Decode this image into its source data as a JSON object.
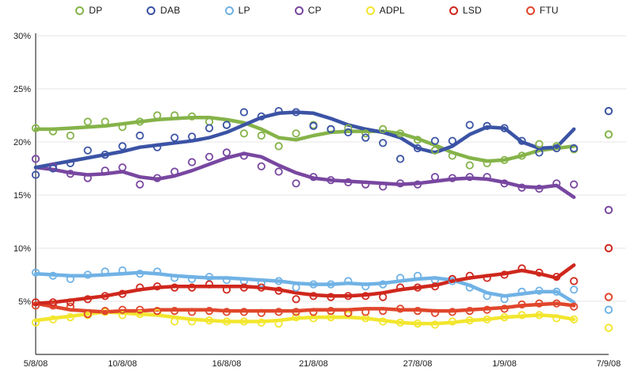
{
  "chart_data": {
    "type": "line",
    "description": "Daily opinion polling trend lines with scatter points for seven parties, ending with isolated election-result points on 7/9/08",
    "legend": {
      "position": "top",
      "items": [
        "DP",
        "DAB",
        "LP",
        "CP",
        "ADPL",
        "LSD",
        "FTU"
      ]
    },
    "x_axis": {
      "tick_labels": [
        "5/8/08",
        "10/8/08",
        "16/8/08",
        "21/8/08",
        "27/8/08",
        "1/9/08",
        "7/9/08"
      ],
      "tick_days": [
        0,
        5,
        11,
        16,
        22,
        27,
        33
      ],
      "total_days": 33
    },
    "y_axis": {
      "tick_labels": [
        "5%",
        "10%",
        "15%",
        "20%",
        "25%",
        "30%"
      ],
      "tick_values": [
        5,
        10,
        15,
        20,
        25,
        30
      ],
      "min": 0,
      "max": 30,
      "unit": "%",
      "grid": true
    },
    "style": {
      "grid_color": "#e4e4e4",
      "axis_color": "#3a3a3a",
      "label_color": "#1a1a1a",
      "background": "#ffffff"
    },
    "dates": [
      "5/8/08",
      "6/8/08",
      "7/8/08",
      "8/8/08",
      "9/8/08",
      "10/8/08",
      "11/8/08",
      "12/8/08",
      "13/8/08",
      "14/8/08",
      "15/8/08",
      "16/8/08",
      "17/8/08",
      "18/8/08",
      "19/8/08",
      "20/8/08",
      "21/8/08",
      "22/8/08",
      "23/8/08",
      "24/8/08",
      "25/8/08",
      "26/8/08",
      "27/8/08",
      "28/8/08",
      "29/8/08",
      "30/8/08",
      "31/8/08",
      "1/9/08",
      "2/9/08",
      "3/9/08",
      "4/9/08",
      "5/9/08"
    ],
    "final_date": "7/9/08",
    "draw_order": [
      "ADPL",
      "FTU",
      "LP",
      "LSD",
      "CP",
      "DP",
      "DAB"
    ],
    "series": [
      {
        "name": "DP",
        "color": "#85b349",
        "points": [
          21.3,
          21.0,
          20.6,
          21.9,
          21.9,
          21.4,
          21.9,
          22.5,
          22.5,
          22.4,
          21.9,
          21.6,
          20.8,
          20.6,
          19.6,
          20.8,
          21.6,
          21.2,
          21.3,
          20.8,
          21.2,
          20.8,
          20.2,
          19.2,
          18.7,
          17.8,
          18.0,
          18.3,
          18.7,
          19.8,
          19.6,
          19.3
        ],
        "trend": [
          21.2,
          21.2,
          21.3,
          21.4,
          21.5,
          21.7,
          21.9,
          22.1,
          22.2,
          22.3,
          22.3,
          22.1,
          21.8,
          21.2,
          20.4,
          20.2,
          20.6,
          20.9,
          21.0,
          21.0,
          21.0,
          20.8,
          20.3,
          19.7,
          19.0,
          18.5,
          18.2,
          18.3,
          18.7,
          19.2,
          19.4,
          19.6
        ],
        "final": 20.7
      },
      {
        "name": "DAB",
        "color": "#3b53a5",
        "points": [
          16.9,
          17.5,
          18.0,
          19.2,
          18.8,
          19.6,
          20.6,
          19.5,
          20.4,
          20.5,
          21.3,
          21.6,
          22.8,
          22.4,
          22.9,
          22.8,
          21.5,
          21.2,
          20.9,
          20.4,
          19.9,
          18.4,
          19.4,
          20.1,
          20.1,
          21.6,
          21.5,
          21.3,
          20.1,
          19.0,
          19.4,
          19.4
        ],
        "trend": [
          17.6,
          17.9,
          18.2,
          18.5,
          18.8,
          19.1,
          19.5,
          19.7,
          19.9,
          20.1,
          20.4,
          20.9,
          21.6,
          22.3,
          22.7,
          22.8,
          22.7,
          22.2,
          21.6,
          21.2,
          20.9,
          20.4,
          19.4,
          19.0,
          19.6,
          20.7,
          21.4,
          21.3,
          20.0,
          19.4,
          19.5,
          21.2
        ],
        "final": 22.9
      },
      {
        "name": "LP",
        "color": "#70b2e5",
        "points": [
          7.7,
          7.4,
          7.1,
          7.5,
          7.8,
          7.9,
          7.6,
          7.8,
          7.2,
          7.1,
          7.3,
          7.0,
          6.9,
          6.7,
          6.9,
          6.3,
          6.6,
          6.6,
          6.9,
          6.4,
          6.6,
          7.2,
          7.4,
          7.0,
          6.9,
          6.3,
          5.5,
          5.2,
          5.9,
          6.0,
          5.9,
          6.1
        ],
        "trend": [
          7.6,
          7.5,
          7.4,
          7.4,
          7.5,
          7.6,
          7.7,
          7.6,
          7.4,
          7.3,
          7.2,
          7.2,
          7.1,
          7.0,
          6.9,
          6.7,
          6.6,
          6.6,
          6.7,
          6.6,
          6.7,
          6.9,
          7.1,
          7.2,
          7.0,
          6.5,
          5.8,
          5.5,
          5.7,
          5.9,
          5.9,
          4.9
        ],
        "final": 4.2
      },
      {
        "name": "CP",
        "color": "#7847a0",
        "points": [
          18.4,
          17.7,
          17.0,
          16.6,
          17.3,
          17.6,
          16.0,
          16.6,
          17.2,
          18.1,
          18.6,
          19.0,
          18.7,
          17.7,
          17.2,
          16.1,
          16.7,
          16.4,
          16.2,
          16.0,
          15.8,
          16.1,
          16.0,
          16.7,
          16.6,
          16.7,
          16.7,
          16.1,
          15.7,
          15.6,
          16.1,
          16.0
        ],
        "trend": [
          17.6,
          17.4,
          17.1,
          16.9,
          17.0,
          17.2,
          16.7,
          16.5,
          16.8,
          17.3,
          17.9,
          18.5,
          18.9,
          18.6,
          17.8,
          17.1,
          16.6,
          16.4,
          16.3,
          16.2,
          16.1,
          16.0,
          16.1,
          16.3,
          16.5,
          16.6,
          16.5,
          16.2,
          15.8,
          15.7,
          15.9,
          14.8
        ],
        "final": 13.6
      },
      {
        "name": "ADPL",
        "color": "#f2e62e",
        "points": [
          3.0,
          3.3,
          3.5,
          3.7,
          4.0,
          3.7,
          3.8,
          3.9,
          3.1,
          3.1,
          3.2,
          3.1,
          3.1,
          3.0,
          2.9,
          3.5,
          3.4,
          3.5,
          3.7,
          3.4,
          3.1,
          3.0,
          2.9,
          2.8,
          3.1,
          3.2,
          3.3,
          3.5,
          3.7,
          3.7,
          3.4,
          3.3
        ],
        "trend": [
          3.2,
          3.4,
          3.6,
          3.8,
          4.0,
          3.9,
          3.8,
          3.7,
          3.5,
          3.3,
          3.2,
          3.1,
          3.1,
          3.1,
          3.2,
          3.4,
          3.5,
          3.5,
          3.5,
          3.4,
          3.2,
          3.0,
          2.9,
          2.9,
          3.0,
          3.2,
          3.3,
          3.5,
          3.6,
          3.7,
          3.6,
          3.3
        ],
        "final": 2.5
      },
      {
        "name": "LSD",
        "color": "#cf271d",
        "points": [
          4.9,
          4.9,
          4.9,
          5.2,
          5.5,
          5.7,
          6.3,
          6.4,
          6.3,
          6.3,
          6.6,
          6.1,
          6.3,
          6.3,
          6.0,
          5.2,
          5.5,
          5.4,
          5.5,
          5.5,
          5.4,
          6.3,
          6.3,
          6.4,
          7.1,
          7.4,
          7.2,
          7.5,
          8.1,
          7.7,
          7.3,
          6.9
        ],
        "trend": [
          4.8,
          4.9,
          5.1,
          5.3,
          5.5,
          5.8,
          6.1,
          6.3,
          6.4,
          6.4,
          6.4,
          6.4,
          6.4,
          6.3,
          6.1,
          5.8,
          5.6,
          5.5,
          5.5,
          5.6,
          5.8,
          6.1,
          6.3,
          6.5,
          6.9,
          7.2,
          7.4,
          7.6,
          7.9,
          7.6,
          7.2,
          8.4
        ],
        "final": 10.0
      },
      {
        "name": "FTU",
        "color": "#e0462b",
        "points": [
          4.6,
          4.6,
          4.5,
          3.8,
          4.1,
          4.2,
          4.2,
          4.1,
          4.1,
          4.0,
          4.1,
          4.0,
          4.0,
          3.9,
          4.0,
          4.0,
          4.0,
          4.1,
          3.9,
          4.0,
          4.1,
          4.3,
          4.1,
          3.9,
          4.0,
          4.1,
          4.2,
          4.3,
          4.7,
          4.8,
          4.8,
          4.5
        ],
        "trend": [
          4.8,
          4.5,
          4.2,
          4.1,
          4.0,
          4.1,
          4.1,
          4.2,
          4.2,
          4.2,
          4.2,
          4.1,
          4.1,
          4.1,
          4.1,
          4.1,
          4.2,
          4.2,
          4.2,
          4.3,
          4.3,
          4.2,
          4.2,
          4.1,
          4.1,
          4.2,
          4.3,
          4.4,
          4.6,
          4.7,
          4.8,
          4.6
        ],
        "final": 5.4
      }
    ]
  }
}
